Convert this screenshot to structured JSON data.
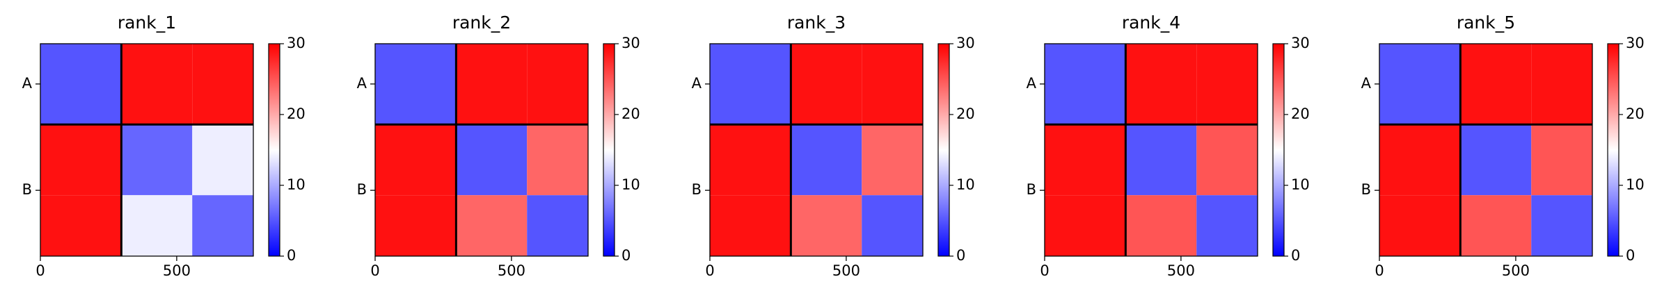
{
  "chart_data": [
    {
      "type": "heatmap",
      "title": "rank_1",
      "x_edges": [
        0,
        297,
        557,
        781
      ],
      "y_edges": [
        0,
        297,
        557,
        781
      ],
      "values": [
        [
          5,
          29,
          29
        ],
        [
          29,
          6,
          14
        ],
        [
          29,
          14,
          6
        ]
      ],
      "xlim": [
        0,
        781
      ],
      "ylim": [
        781,
        0
      ],
      "xticks": [
        0,
        500
      ],
      "yticks": [
        {
          "value": 148,
          "label": "A"
        },
        {
          "value": 539,
          "label": "B"
        }
      ],
      "chain_breaks": [
        297
      ],
      "cmap": [
        "#0000ff",
        "#ffffff",
        "#ff0000"
      ],
      "clim": [
        0,
        30
      ],
      "cticks": [
        0,
        10,
        20,
        30
      ]
    },
    {
      "type": "heatmap",
      "title": "rank_2",
      "x_edges": [
        0,
        297,
        557,
        781
      ],
      "y_edges": [
        0,
        297,
        557,
        781
      ],
      "values": [
        [
          5,
          29,
          29
        ],
        [
          29,
          5,
          24
        ],
        [
          29,
          24,
          5
        ]
      ],
      "xlim": [
        0,
        781
      ],
      "ylim": [
        781,
        0
      ],
      "xticks": [
        0,
        500
      ],
      "yticks": [
        {
          "value": 148,
          "label": "A"
        },
        {
          "value": 539,
          "label": "B"
        }
      ],
      "chain_breaks": [
        297
      ],
      "cmap": [
        "#0000ff",
        "#ffffff",
        "#ff0000"
      ],
      "clim": [
        0,
        30
      ],
      "cticks": [
        0,
        10,
        20,
        30
      ]
    },
    {
      "type": "heatmap",
      "title": "rank_3",
      "x_edges": [
        0,
        297,
        557,
        781
      ],
      "y_edges": [
        0,
        297,
        557,
        781
      ],
      "values": [
        [
          5,
          29,
          29
        ],
        [
          29,
          5,
          24
        ],
        [
          29,
          24,
          5
        ]
      ],
      "xlim": [
        0,
        781
      ],
      "ylim": [
        781,
        0
      ],
      "xticks": [
        0,
        500
      ],
      "yticks": [
        {
          "value": 148,
          "label": "A"
        },
        {
          "value": 539,
          "label": "B"
        }
      ],
      "chain_breaks": [
        297
      ],
      "cmap": [
        "#0000ff",
        "#ffffff",
        "#ff0000"
      ],
      "clim": [
        0,
        30
      ],
      "cticks": [
        0,
        10,
        20,
        30
      ]
    },
    {
      "type": "heatmap",
      "title": "rank_4",
      "x_edges": [
        0,
        297,
        557,
        781
      ],
      "y_edges": [
        0,
        297,
        557,
        781
      ],
      "values": [
        [
          5,
          29,
          29
        ],
        [
          29,
          5,
          25
        ],
        [
          29,
          25,
          5
        ]
      ],
      "xlim": [
        0,
        781
      ],
      "ylim": [
        781,
        0
      ],
      "xticks": [
        0,
        500
      ],
      "yticks": [
        {
          "value": 148,
          "label": "A"
        },
        {
          "value": 539,
          "label": "B"
        }
      ],
      "chain_breaks": [
        297
      ],
      "cmap": [
        "#0000ff",
        "#ffffff",
        "#ff0000"
      ],
      "clim": [
        0,
        30
      ],
      "cticks": [
        0,
        10,
        20,
        30
      ]
    },
    {
      "type": "heatmap",
      "title": "rank_5",
      "x_edges": [
        0,
        297,
        557,
        781
      ],
      "y_edges": [
        0,
        297,
        557,
        781
      ],
      "values": [
        [
          5,
          29,
          29
        ],
        [
          29,
          5,
          25
        ],
        [
          29,
          25,
          5
        ]
      ],
      "xlim": [
        0,
        781
      ],
      "ylim": [
        781,
        0
      ],
      "xticks": [
        0,
        500
      ],
      "yticks": [
        {
          "value": 148,
          "label": "A"
        },
        {
          "value": 539,
          "label": "B"
        }
      ],
      "chain_breaks": [
        297
      ],
      "cmap": [
        "#0000ff",
        "#ffffff",
        "#ff0000"
      ],
      "clim": [
        0,
        30
      ],
      "cticks": [
        0,
        10,
        20,
        30
      ]
    }
  ]
}
